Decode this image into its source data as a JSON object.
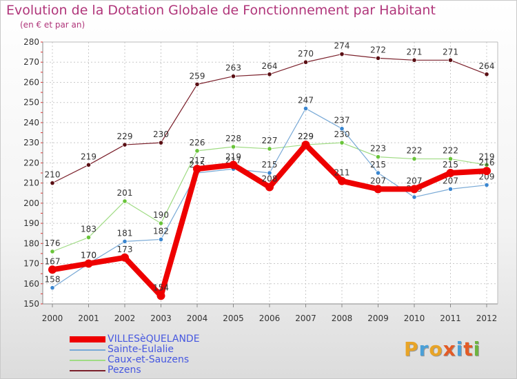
{
  "title": "Evolution de la Dotation Globale de Fonctionnement par Habitant",
  "subtitle": "(en € et par an)",
  "logo": {
    "text": "Proxiti",
    "colors": [
      "#e8a427",
      "#4aa0d8",
      "#e8a427",
      "#e35b26",
      "#4aa0d8",
      "#e35b26",
      "#6db33f"
    ]
  },
  "chart_data": {
    "type": "line",
    "x": [
      "2000",
      "2001",
      "2002",
      "2003",
      "2004",
      "2005",
      "2006",
      "2007",
      "2008",
      "2009",
      "2010",
      "2011",
      "2012"
    ],
    "ylim": [
      150,
      280
    ],
    "yticks": [
      "150",
      "160",
      "170",
      "180",
      "190",
      "200",
      "210",
      "220",
      "230",
      "240",
      "250",
      "260",
      "270",
      "280"
    ],
    "grid": true,
    "legend_position": "bottom-left",
    "series": [
      {
        "name": "Pezens",
        "color": "#7a1f2a",
        "marker": "#5a0f14",
        "width": 1.2,
        "values": [
          210,
          219,
          229,
          230,
          259,
          263,
          264,
          270,
          274,
          272,
          271,
          271,
          264
        ]
      },
      {
        "name": "Caux-et-Sauzens",
        "color": "#9fdb83",
        "marker": "#69c43a",
        "width": 1.2,
        "values": [
          176,
          183,
          201,
          190,
          226,
          228,
          227,
          229,
          230,
          223,
          222,
          222,
          219
        ]
      },
      {
        "name": "Sainte-Eulalie",
        "color": "#78a9d6",
        "marker": "#3a86d0",
        "width": 1.2,
        "values": [
          158,
          170,
          181,
          182,
          215,
          217,
          215,
          247,
          237,
          215,
          203,
          207,
          209
        ]
      },
      {
        "name": "VILLESèQUELANDE",
        "color": "#ee0000",
        "marker": "#ee0000",
        "width": 8,
        "values": [
          167,
          170,
          173,
          154,
          217,
          219,
          208,
          229,
          211,
          207,
          207,
          215,
          216
        ]
      }
    ]
  },
  "legend": [
    {
      "label": "VILLESèQUELANDE",
      "color": "#ee0000"
    },
    {
      "label": "Sainte-Eulalie",
      "color": "#78a9d6"
    },
    {
      "label": "Caux-et-Sauzens",
      "color": "#9fdb83"
    },
    {
      "label": "Pezens",
      "color": "#7a1f2a"
    }
  ]
}
